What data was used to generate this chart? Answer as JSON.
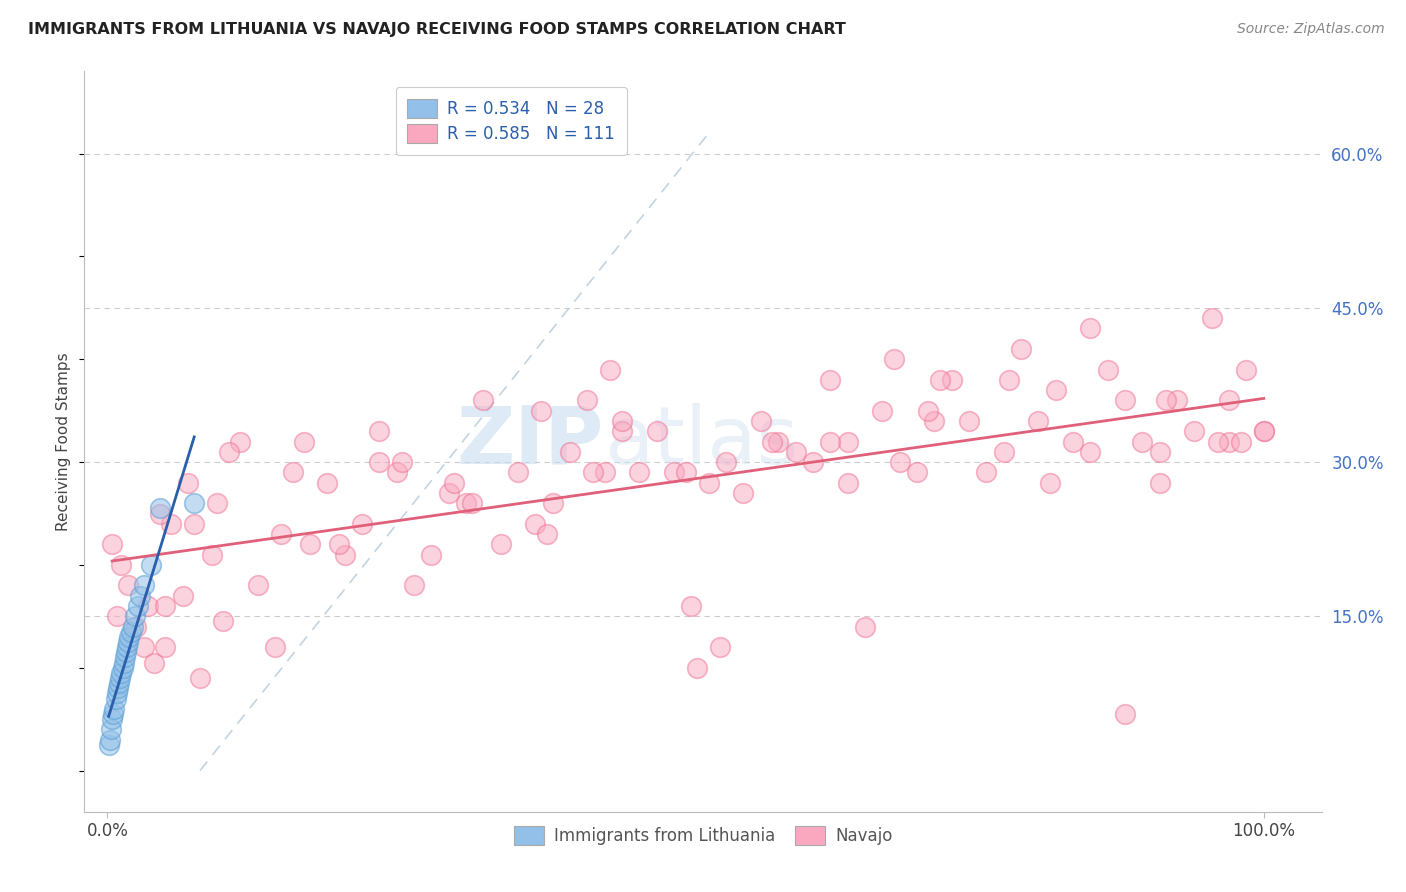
{
  "title": "IMMIGRANTS FROM LITHUANIA VS NAVAJO RECEIVING FOOD STAMPS CORRELATION CHART",
  "source": "Source: ZipAtlas.com",
  "ylabel": "Receiving Food Stamps",
  "x_tick_labels": [
    "0.0%",
    "100.0%"
  ],
  "y_tick_positions": [
    15,
    30,
    45,
    60
  ],
  "watermark_zip": "ZIP",
  "watermark_atlas": "atlas",
  "legend_line1": "R = 0.534   N = 28",
  "legend_line2": "R = 0.585   N = 111",
  "legend_label1": "Immigrants from Lithuania",
  "legend_label2": "Navajo",
  "blue_face_color": "#92C0E8",
  "blue_edge_color": "#5A9FD4",
  "pink_face_color": "#F9A8C0",
  "pink_edge_color": "#F07090",
  "blue_line_color": "#2A5FAC",
  "pink_line_color": "#E0607A",
  "diag_line_color": "#B8CCDC",
  "background_color": "#FFFFFF",
  "grid_color": "#CCCCCC",
  "blue_x": [
    0.1,
    0.2,
    0.3,
    0.4,
    0.5,
    0.6,
    0.7,
    0.8,
    0.9,
    1.0,
    1.1,
    1.2,
    1.3,
    1.4,
    1.5,
    1.6,
    1.7,
    1.8,
    1.9,
    2.0,
    2.2,
    2.4,
    2.6,
    2.8,
    3.2,
    3.8,
    4.5,
    7.5
  ],
  "blue_y": [
    2.5,
    3.0,
    4.0,
    5.0,
    5.5,
    6.0,
    7.0,
    7.5,
    8.0,
    8.5,
    9.0,
    9.5,
    10.0,
    10.5,
    11.0,
    11.5,
    12.0,
    12.5,
    13.0,
    13.5,
    14.0,
    15.0,
    16.0,
    17.0,
    18.0,
    20.0,
    25.5,
    26.0
  ],
  "pink_x": [
    0.4,
    0.8,
    1.2,
    1.8,
    2.5,
    3.2,
    4.0,
    5.0,
    5.5,
    6.5,
    7.0,
    8.0,
    9.0,
    10.0,
    11.5,
    13.0,
    14.5,
    16.0,
    17.5,
    19.0,
    20.5,
    22.0,
    23.5,
    25.0,
    26.5,
    28.0,
    29.5,
    31.0,
    32.5,
    34.0,
    35.5,
    37.0,
    38.5,
    40.0,
    41.5,
    43.0,
    44.5,
    46.0,
    47.5,
    49.0,
    50.5,
    52.0,
    53.5,
    55.0,
    56.5,
    58.0,
    59.5,
    61.0,
    62.5,
    64.0,
    65.5,
    67.0,
    68.5,
    70.0,
    71.5,
    73.0,
    74.5,
    76.0,
    77.5,
    79.0,
    80.5,
    82.0,
    83.5,
    85.0,
    86.5,
    88.0,
    89.5,
    91.0,
    92.5,
    94.0,
    95.5,
    97.0,
    98.5,
    100.0,
    3.5,
    5.0,
    7.5,
    10.5,
    15.0,
    20.0,
    25.5,
    31.5,
    38.0,
    44.5,
    51.0,
    57.5,
    64.0,
    71.0,
    78.0,
    85.0,
    91.5,
    97.0,
    4.5,
    9.5,
    17.0,
    23.5,
    30.0,
    37.5,
    43.5,
    50.0,
    62.5,
    72.0,
    81.5,
    91.0,
    98.0,
    53.0,
    42.0,
    68.0,
    88.0,
    96.0,
    100.0
  ],
  "pink_y": [
    22.0,
    15.0,
    20.0,
    18.0,
    14.0,
    12.0,
    10.5,
    12.0,
    24.0,
    17.0,
    28.0,
    9.0,
    21.0,
    14.5,
    32.0,
    18.0,
    12.0,
    29.0,
    22.0,
    28.0,
    21.0,
    24.0,
    33.0,
    29.0,
    18.0,
    21.0,
    27.0,
    26.0,
    36.0,
    22.0,
    29.0,
    24.0,
    26.0,
    31.0,
    36.0,
    29.0,
    33.0,
    29.0,
    33.0,
    29.0,
    16.0,
    28.0,
    30.0,
    27.0,
    34.0,
    32.0,
    31.0,
    30.0,
    38.0,
    32.0,
    14.0,
    35.0,
    30.0,
    29.0,
    34.0,
    38.0,
    34.0,
    29.0,
    31.0,
    41.0,
    34.0,
    37.0,
    32.0,
    43.0,
    39.0,
    36.0,
    32.0,
    31.0,
    36.0,
    33.0,
    44.0,
    36.0,
    39.0,
    33.0,
    16.0,
    16.0,
    24.0,
    31.0,
    23.0,
    22.0,
    30.0,
    26.0,
    23.0,
    34.0,
    10.0,
    32.0,
    28.0,
    35.0,
    38.0,
    31.0,
    36.0,
    32.0,
    25.0,
    26.0,
    32.0,
    30.0,
    28.0,
    35.0,
    39.0,
    29.0,
    32.0,
    38.0,
    28.0,
    28.0,
    32.0,
    12.0,
    29.0,
    40.0,
    5.5,
    32.0,
    33.0
  ]
}
